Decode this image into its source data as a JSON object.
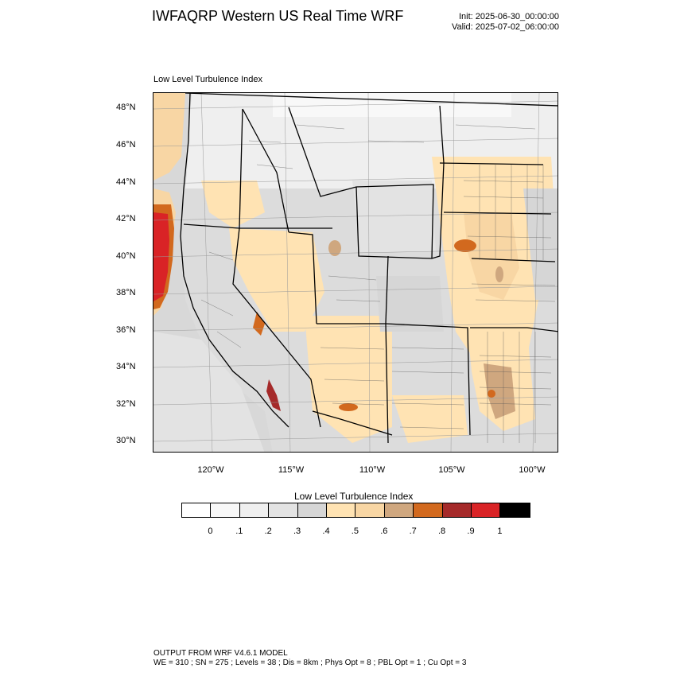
{
  "header": {
    "title": "IWFAQRP Western US Real Time WRF",
    "init": "Init: 2025-06-30_00:00:00",
    "valid": "Valid: 2025-07-02_06:00:00"
  },
  "map": {
    "subtitle": "Low Level Turbulence Index",
    "lat_labels": [
      "48°N",
      "46°N",
      "44°N",
      "42°N",
      "40°N",
      "38°N",
      "36°N",
      "34°N",
      "32°N",
      "30°N"
    ],
    "lon_labels": [
      "120°W",
      "115°W",
      "110°W",
      "105°W",
      "100°W"
    ]
  },
  "colorbar": {
    "title": "Low Level Turbulence Index",
    "colors": [
      "#ffffff",
      "#f8f8f8",
      "#efefef",
      "#e3e3e3",
      "#d6d6d6",
      "#ffe3b3",
      "#f8d6a4",
      "#cfa77f",
      "#d2691e",
      "#a52a2a",
      "#d92326",
      "#000000"
    ],
    "ticks": [
      "0",
      ".1",
      ".2",
      ".3",
      ".4",
      ".5",
      ".6",
      ".7",
      ".8",
      ".9",
      "1"
    ]
  },
  "footer": {
    "line1": "OUTPUT FROM WRF V4.6.1 MODEL",
    "line2": "WE = 310 ; SN = 275 ; Levels = 38 ; Dis = 8km ; Phys Opt = 8 ; PBL Opt = 1 ; Cu Opt = 3"
  }
}
